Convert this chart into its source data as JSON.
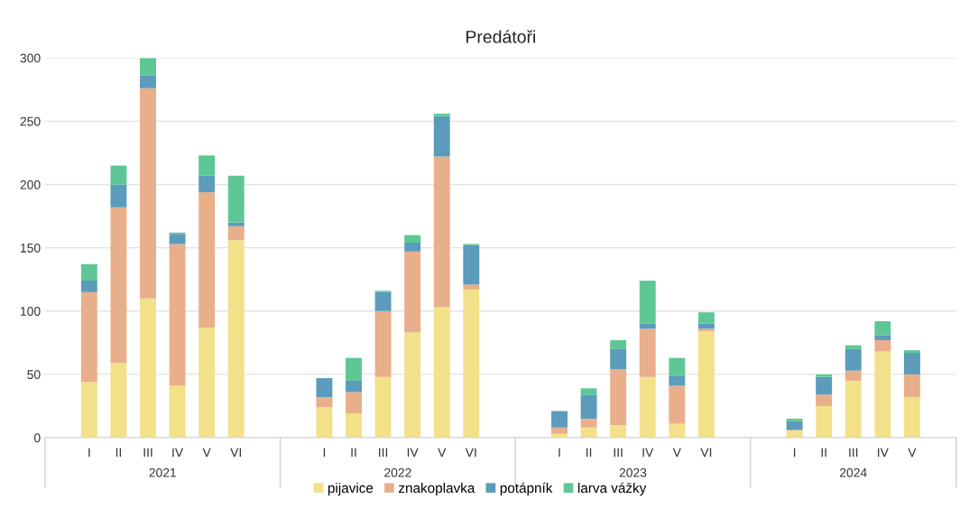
{
  "chart_data": {
    "type": "bar",
    "title": "Predátoři",
    "stacked": true,
    "categories": [
      null,
      "I",
      "II",
      "III",
      "IV",
      "V",
      "VI",
      null,
      null,
      "I",
      "II",
      "III",
      "IV",
      "V",
      "VI",
      null,
      null,
      "I",
      "II",
      "III",
      "IV",
      "V",
      "VI",
      null,
      null,
      "I",
      "II",
      "III",
      "IV",
      "V",
      null
    ],
    "annotations": [
      "2021",
      "2022",
      "2023",
      "2024"
    ],
    "series": [
      {
        "name": "pijavice",
        "color": "#f3e18a",
        "values": [
          null,
          44,
          59,
          110,
          41,
          87,
          156,
          null,
          null,
          24,
          19,
          48,
          83,
          103,
          117,
          null,
          null,
          3,
          8,
          10,
          48,
          11,
          84,
          null,
          null,
          6,
          25,
          45,
          68,
          32,
          null
        ]
      },
      {
        "name": "znakoplavka",
        "color": "#e9af8a",
        "values": [
          null,
          71,
          123,
          166,
          112,
          107,
          11,
          null,
          null,
          8,
          17,
          52,
          64,
          119,
          4,
          null,
          null,
          5,
          7,
          44,
          38,
          30,
          2,
          null,
          null,
          0,
          9,
          8,
          9,
          18,
          null
        ]
      },
      {
        "name": "potápník",
        "color": "#5b9bbb",
        "values": [
          null,
          9,
          18,
          10,
          8,
          13,
          3,
          null,
          null,
          15,
          9,
          15,
          7,
          32,
          31,
          null,
          null,
          13,
          19,
          16,
          4,
          8,
          4,
          null,
          null,
          7,
          14,
          17,
          4,
          17,
          null
        ]
      },
      {
        "name": "larva vážky",
        "color": "#5ec795",
        "values": [
          null,
          13,
          15,
          14,
          1,
          16,
          37,
          null,
          null,
          0,
          18,
          1,
          6,
          2,
          1,
          null,
          null,
          0,
          5,
          7,
          34,
          14,
          9,
          null,
          null,
          2,
          2,
          3,
          11,
          2,
          null
        ]
      }
    ],
    "ylim": [
      0,
      300
    ],
    "yticks": [
      0,
      50,
      100,
      150,
      200,
      250,
      300
    ],
    "grid": "y",
    "legend": "bottom"
  }
}
